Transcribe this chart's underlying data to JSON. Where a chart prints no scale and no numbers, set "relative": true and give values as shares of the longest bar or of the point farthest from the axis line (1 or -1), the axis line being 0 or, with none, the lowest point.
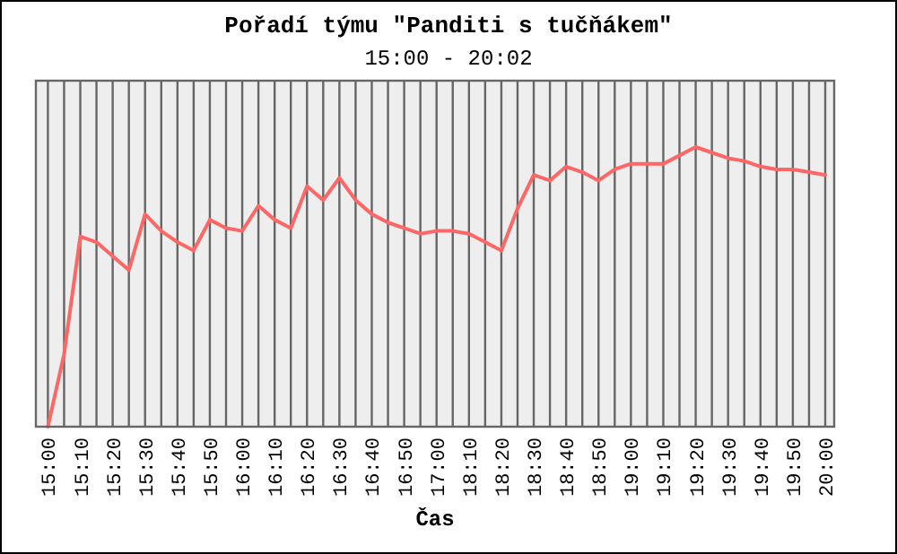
{
  "chart_data": {
    "type": "line",
    "title": "Pořadí týmu \"Panditi s tučňákem\"",
    "subtitle": "15:00 - 20:02",
    "xlabel": "Čas",
    "relative": true,
    "grid": "x",
    "marker": "none",
    "line_style": "solid",
    "categories": [
      "15:00",
      null,
      "15:10",
      null,
      "15:20",
      null,
      "15:30",
      null,
      "15:40",
      null,
      "15:50",
      null,
      "16:00",
      null,
      "16:10",
      null,
      "16:20",
      null,
      "16:30",
      null,
      "16:40",
      null,
      "16:50",
      null,
      "17:00",
      null,
      "18:10",
      null,
      "18:20",
      null,
      "18:30",
      null,
      "18:40",
      null,
      "18:50",
      null,
      "19:00",
      null,
      "19:10",
      null,
      "19:20",
      null,
      "19:30",
      null,
      "19:40",
      null,
      "19:50",
      null,
      "20:00"
    ],
    "series": [
      {
        "color": "#ff6666",
        "values": [
          0,
          0.26,
          0.68,
          0.66,
          0.61,
          0.56,
          0.76,
          0.7,
          0.66,
          0.63,
          0.74,
          0.71,
          0.7,
          0.79,
          0.74,
          0.71,
          0.86,
          0.81,
          0.89,
          0.81,
          0.76,
          0.73,
          0.71,
          0.69,
          0.7,
          0.7,
          0.69,
          0.66,
          0.63,
          0.78,
          0.9,
          0.88,
          0.93,
          0.91,
          0.88,
          0.92,
          0.94,
          0.94,
          0.94,
          0.97,
          1,
          0.98,
          0.96,
          0.95,
          0.93,
          0.92,
          0.92,
          0.91,
          0.9
        ]
      }
    ]
  }
}
